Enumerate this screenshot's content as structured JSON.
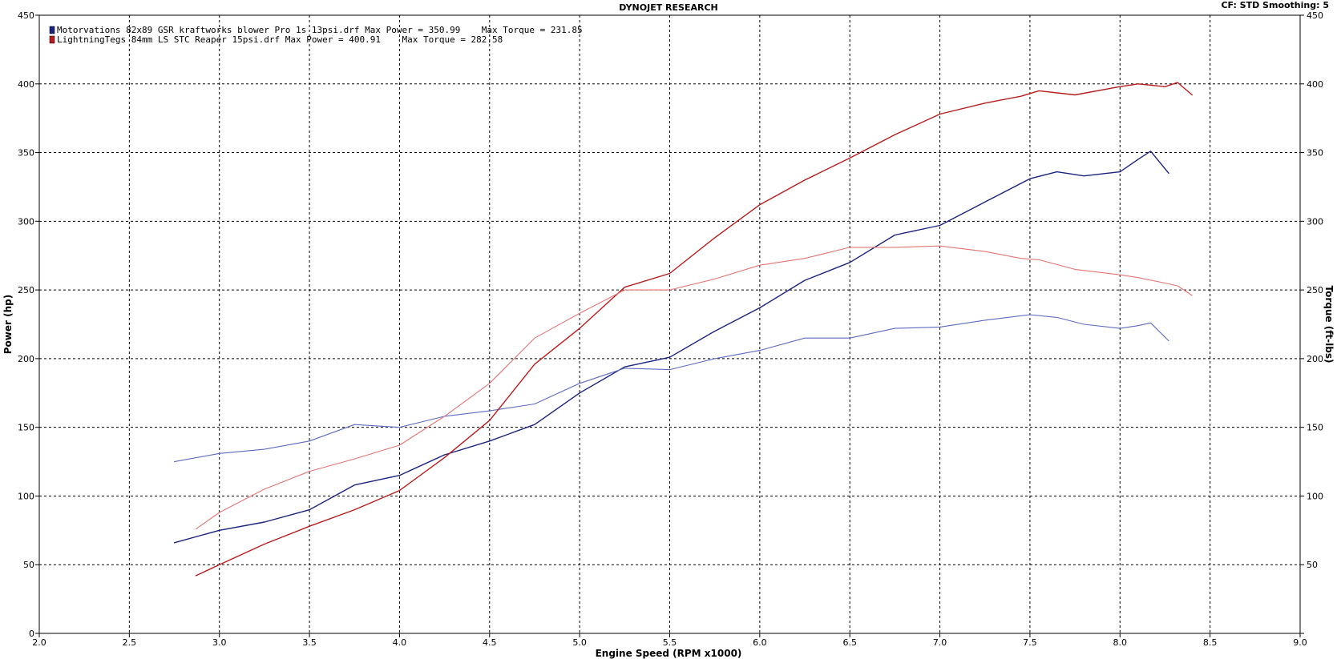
{
  "header": {
    "title": "DYNOJET RESEARCH",
    "settings": "CF: STD  Smoothing: 5"
  },
  "legend": [
    {
      "run": "Motorvations 82x89 GSR kraftworks blower Pro 1s 13psi.drf Max Power = 350.99    Max Torque = 231.85",
      "color": "#1a237e"
    },
    {
      "run": "LightningTegs 84mm LS STC Reaper 15psi.drf Max Power = 400.91    Max Torque = 282.58",
      "color": "#b71c1c"
    }
  ],
  "chart_data": {
    "type": "line",
    "title": "DYNOJET RESEARCH",
    "xlabel": "Engine Speed (RPM x1000)",
    "ylabel_left": "Power (hp)",
    "ylabel_right": "Torque (ft-lbs)",
    "xlim": [
      2.0,
      9.0
    ],
    "ylim": [
      0,
      450
    ],
    "x_ticks": [
      "2.0",
      "2.5",
      "3.0",
      "3.5",
      "4.0",
      "4.5",
      "5.0",
      "5.5",
      "6.0",
      "6.5",
      "7.0",
      "7.5",
      "8.0",
      "8.5",
      "9.0"
    ],
    "y_ticks": [
      "0",
      "50",
      "100",
      "150",
      "200",
      "250",
      "300",
      "350",
      "400",
      "450"
    ],
    "grid": true,
    "legend_position": "top-left",
    "series": [
      {
        "name": "Motorvations 82x89 GSR kraftworks blower Pro 1s 13psi.drf",
        "measure": "power",
        "color": "#1a237e",
        "x": [
          2.75,
          3.0,
          3.25,
          3.5,
          3.75,
          4.0,
          4.25,
          4.5,
          4.75,
          5.0,
          5.25,
          5.5,
          5.75,
          6.0,
          6.25,
          6.5,
          6.75,
          7.0,
          7.25,
          7.5,
          7.65,
          7.8,
          8.0,
          8.1,
          8.17,
          8.27
        ],
        "y": [
          66,
          75,
          81,
          90,
          108,
          115,
          130,
          140,
          152,
          175,
          194,
          201,
          220,
          237,
          257,
          270,
          290,
          297,
          314,
          331,
          336,
          333,
          336,
          345,
          351,
          335
        ]
      },
      {
        "name": "Motorvations 82x89 GSR kraftworks blower Pro 1s 13psi.drf",
        "measure": "torque",
        "color": "#5c6bc0",
        "x": [
          2.75,
          3.0,
          3.25,
          3.5,
          3.75,
          4.0,
          4.25,
          4.5,
          4.75,
          5.0,
          5.25,
          5.5,
          5.75,
          6.0,
          6.25,
          6.5,
          6.75,
          7.0,
          7.25,
          7.5,
          7.65,
          7.8,
          8.0,
          8.1,
          8.17,
          8.27
        ],
        "y": [
          125,
          131,
          134,
          140,
          152,
          150,
          158,
          162,
          167,
          182,
          193,
          192,
          200,
          206,
          215,
          215,
          222,
          223,
          228,
          232,
          230,
          225,
          222,
          224,
          226,
          213
        ]
      },
      {
        "name": "LightningTegs 84mm LS STC Reaper 15psi.drf",
        "measure": "power",
        "color": "#b71c1c",
        "x": [
          2.87,
          3.0,
          3.25,
          3.5,
          3.75,
          4.0,
          4.25,
          4.5,
          4.75,
          5.0,
          5.25,
          5.5,
          5.75,
          6.0,
          6.25,
          6.5,
          6.75,
          7.0,
          7.25,
          7.45,
          7.55,
          7.75,
          8.0,
          8.1,
          8.25,
          8.32,
          8.4
        ],
        "y": [
          42,
          50,
          65,
          78,
          90,
          104,
          128,
          155,
          196,
          222,
          252,
          262,
          288,
          312,
          330,
          346,
          363,
          378,
          386,
          391,
          395,
          392,
          398,
          400,
          398,
          401,
          392
        ]
      },
      {
        "name": "LightningTegs 84mm LS STC Reaper 15psi.drf",
        "measure": "torque",
        "color": "#e57373",
        "x": [
          2.87,
          3.0,
          3.25,
          3.5,
          3.75,
          4.0,
          4.25,
          4.5,
          4.75,
          5.0,
          5.25,
          5.5,
          5.75,
          6.0,
          6.25,
          6.5,
          6.75,
          7.0,
          7.25,
          7.45,
          7.55,
          7.75,
          8.0,
          8.1,
          8.25,
          8.32,
          8.4
        ],
        "y": [
          76,
          88,
          105,
          118,
          127,
          137,
          158,
          182,
          215,
          233,
          250,
          250,
          258,
          268,
          273,
          281,
          281,
          282,
          278,
          273,
          272,
          265,
          261,
          259,
          255,
          253,
          246
        ]
      }
    ]
  }
}
